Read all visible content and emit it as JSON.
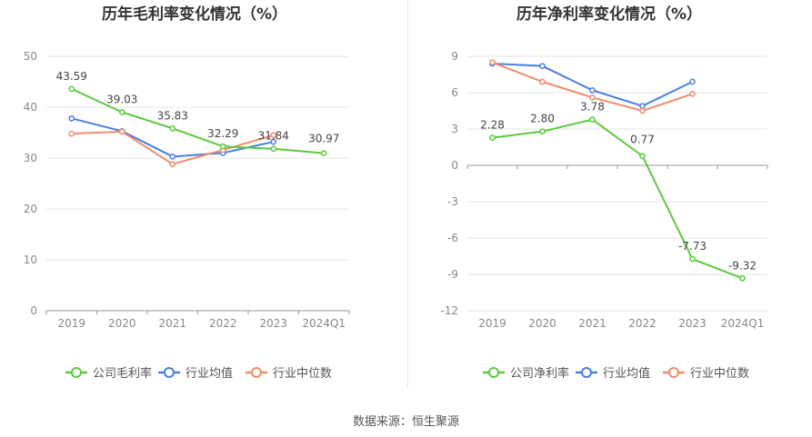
{
  "source_label": "数据来源：恒生聚源",
  "chart_data": [
    {
      "type": "line",
      "title": "历年毛利率变化情况（%）",
      "categories": [
        "2019",
        "2020",
        "2021",
        "2022",
        "2023",
        "2024Q1"
      ],
      "ylim": [
        0,
        50
      ],
      "yticks": [
        0,
        10,
        20,
        30,
        40,
        50
      ],
      "grid": true,
      "legend_position": "bottom",
      "series": [
        {
          "name": "公司毛利率",
          "color": "#5cc93c",
          "values": [
            43.59,
            39.03,
            35.83,
            32.29,
            31.84,
            30.97
          ],
          "labels": [
            "43.59",
            "39.03",
            "35.83",
            "32.29",
            "31.84",
            "30.97"
          ]
        },
        {
          "name": "行业均值",
          "color": "#4a7fe0",
          "values": [
            37.8,
            35.3,
            30.3,
            31.0,
            33.2,
            null
          ]
        },
        {
          "name": "行业中位数",
          "color": "#f08c6c",
          "values": [
            34.8,
            35.2,
            28.8,
            31.6,
            34.5,
            null
          ]
        }
      ]
    },
    {
      "type": "line",
      "title": "历年净利率变化情况（%）",
      "categories": [
        "2019",
        "2020",
        "2021",
        "2022",
        "2023",
        "2024Q1"
      ],
      "ylim": [
        -12,
        9
      ],
      "yticks": [
        9,
        6,
        3,
        0,
        -3,
        -6,
        -9,
        -12
      ],
      "grid": true,
      "legend_position": "bottom",
      "series": [
        {
          "name": "公司净利率",
          "color": "#5cc93c",
          "values": [
            2.28,
            2.8,
            3.78,
            0.77,
            -7.73,
            -9.32
          ],
          "labels": [
            "2.28",
            "2.80",
            "3.78",
            "0.77",
            "-7.73",
            "-9.32"
          ]
        },
        {
          "name": "行业均值",
          "color": "#4a7fe0",
          "values": [
            8.4,
            8.2,
            6.2,
            4.9,
            6.9,
            null
          ]
        },
        {
          "name": "行业中位数",
          "color": "#f08c6c",
          "values": [
            8.5,
            6.9,
            5.6,
            4.5,
            5.9,
            null
          ]
        }
      ]
    }
  ]
}
